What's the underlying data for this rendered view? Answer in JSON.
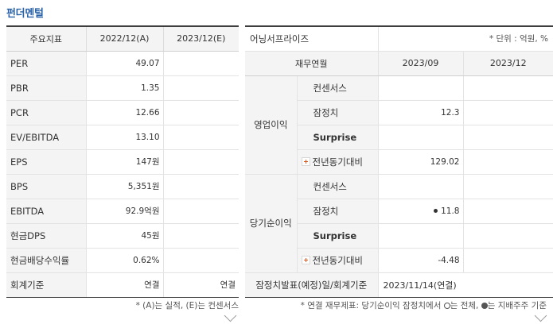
{
  "section_title": "펀더멘털",
  "left": {
    "headers": [
      "주요지표",
      "2022/12(A)",
      "2023/12(E)"
    ],
    "rows": [
      {
        "label": "PER",
        "a": "49.07",
        "e": ""
      },
      {
        "label": "PBR",
        "a": "1.35",
        "e": ""
      },
      {
        "label": "PCR",
        "a": "12.66",
        "e": ""
      },
      {
        "label": "EV/EBITDA",
        "a": "13.10",
        "e": ""
      },
      {
        "label": "EPS",
        "a": "147원",
        "e": ""
      },
      {
        "label": "BPS",
        "a": "5,351원",
        "e": ""
      },
      {
        "label": "EBITDA",
        "a": "92.9억원",
        "e": ""
      },
      {
        "label": "현금DPS",
        "a": "45원",
        "e": ""
      },
      {
        "label": "현금배당수익률",
        "a": "0.62%",
        "e": ""
      },
      {
        "label": "회계기준",
        "a": "연결",
        "e": "연결"
      }
    ],
    "note": "* (A)는 실적, (E)는 컨센서스"
  },
  "right": {
    "title": "어닝서프라이즈",
    "unit": "* 단위 : 억원, %",
    "col_headers": [
      "재무연월",
      "2023/09",
      "2023/12"
    ],
    "groups": [
      {
        "label": "영업이익",
        "rows": [
          {
            "label": "컨센서스",
            "v1": "",
            "v2": ""
          },
          {
            "label": "잠정치",
            "v1": "12.3",
            "v2": ""
          },
          {
            "label": "Surprise",
            "v1": "",
            "v2": ""
          },
          {
            "label": "전년동기대비",
            "v1": "129.02",
            "v2": ""
          }
        ]
      },
      {
        "label": "당기순이익",
        "rows": [
          {
            "label": "컨센서스",
            "v1": "",
            "v2": ""
          },
          {
            "label": "잠정치",
            "v1": "11.8",
            "v2": ""
          },
          {
            "label": "Surprise",
            "v1": "",
            "v2": ""
          },
          {
            "label": "전년동기대비",
            "v1": "-4.48",
            "v2": ""
          }
        ]
      }
    ],
    "footer_label": "잠정치발표(예정)일/회계기준",
    "footer_value": "2023/11/14(연결)",
    "note_parts": {
      "a": "* 연결 재무제표: 당기순이익 잠정치에서 ",
      "b": "는 전체, ",
      "c": "는 지배주주 기준"
    }
  }
}
